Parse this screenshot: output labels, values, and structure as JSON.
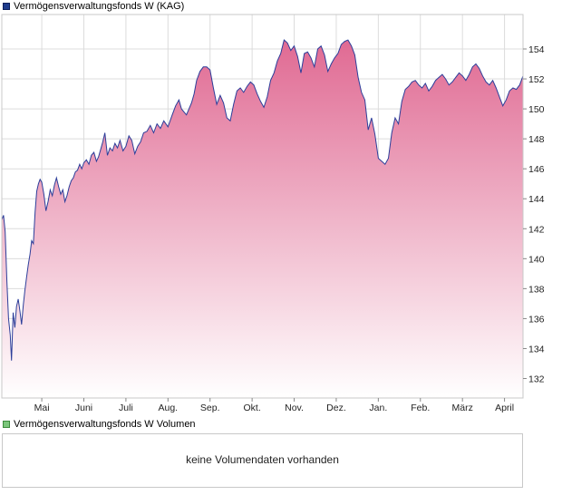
{
  "chart_data": [
    {
      "type": "area",
      "legend": "Vermögensverwaltungsfonds W (KAG)",
      "title": "",
      "xlabel": "",
      "ylabel": "",
      "ylim": [
        130.7,
        156.3
      ],
      "y_ticks": [
        132,
        134,
        136,
        138,
        140,
        142,
        144,
        146,
        148,
        150,
        152,
        154
      ],
      "x_ticks": [
        "Mai",
        "Juni",
        "Juli",
        "Aug.",
        "Sep.",
        "Okt.",
        "Nov.",
        "Dez.",
        "Jan.",
        "Feb.",
        "März",
        "April"
      ],
      "x_tick_months": [
        1,
        2,
        3,
        4,
        5,
        6,
        7,
        8,
        9,
        10,
        11,
        12
      ],
      "x_range_months": [
        0.05,
        12.44
      ],
      "grid": true,
      "legend_position": "top-left",
      "colors": {
        "line": "#2c3e9a",
        "fill_top": "#e06a93",
        "fill_bottom": "#ffffff",
        "grid": "#dcdcdc"
      },
      "series": [
        {
          "x": [
            0.05,
            0.09,
            0.13,
            0.17,
            0.21,
            0.25,
            0.28,
            0.32,
            0.36,
            0.4,
            0.44,
            0.48,
            0.52,
            0.56,
            0.6,
            0.64,
            0.68,
            0.72,
            0.76,
            0.8,
            0.84,
            0.88,
            0.92,
            0.96,
            1.0,
            1.05,
            1.1,
            1.15,
            1.2,
            1.25,
            1.3,
            1.35,
            1.4,
            1.45,
            1.5,
            1.55,
            1.6,
            1.65,
            1.7,
            1.75,
            1.8,
            1.85,
            1.9,
            1.95,
            2.0,
            2.06,
            2.12,
            2.18,
            2.24,
            2.3,
            2.35,
            2.4,
            2.45,
            2.5,
            2.56,
            2.62,
            2.68,
            2.74,
            2.8,
            2.86,
            2.93,
            3.0,
            3.07,
            3.14,
            3.21,
            3.28,
            3.35,
            3.42,
            3.5,
            3.58,
            3.66,
            3.74,
            3.82,
            3.9,
            4.0,
            4.1,
            4.18,
            4.26,
            4.32,
            4.38,
            4.44,
            4.5,
            4.56,
            4.62,
            4.68,
            4.76,
            4.84,
            4.92,
            5.0,
            5.08,
            5.16,
            5.24,
            5.32,
            5.4,
            5.48,
            5.56,
            5.64,
            5.72,
            5.8,
            5.88,
            5.96,
            6.04,
            6.12,
            6.2,
            6.28,
            6.36,
            6.44,
            6.52,
            6.6,
            6.68,
            6.76,
            6.84,
            6.92,
            7.0,
            7.08,
            7.16,
            7.24,
            7.32,
            7.4,
            7.48,
            7.56,
            7.64,
            7.72,
            7.8,
            7.88,
            7.96,
            8.04,
            8.12,
            8.2,
            8.28,
            8.36,
            8.44,
            8.52,
            8.6,
            8.68,
            8.76,
            8.84,
            8.92,
            9.0,
            9.08,
            9.16,
            9.24,
            9.32,
            9.4,
            9.48,
            9.56,
            9.64,
            9.72,
            9.8,
            9.88,
            9.96,
            10.04,
            10.12,
            10.2,
            10.28,
            10.36,
            10.44,
            10.52,
            10.6,
            10.68,
            10.76,
            10.84,
            10.92,
            11.0,
            11.08,
            11.16,
            11.24,
            11.32,
            11.4,
            11.48,
            11.56,
            11.64,
            11.72,
            11.8,
            11.88,
            11.96,
            12.04,
            12.12,
            12.2,
            12.28,
            12.36,
            12.44
          ],
          "values": [
            142.6,
            142.9,
            141.8,
            138.5,
            136.0,
            134.9,
            133.2,
            136.4,
            135.4,
            136.8,
            137.3,
            136.5,
            135.6,
            136.9,
            137.9,
            138.8,
            139.6,
            140.3,
            141.2,
            141.0,
            143.1,
            144.5,
            145.0,
            145.3,
            145.1,
            144.3,
            143.2,
            143.8,
            144.6,
            144.2,
            144.9,
            145.4,
            144.8,
            144.3,
            144.6,
            143.8,
            144.2,
            144.8,
            145.2,
            145.4,
            145.8,
            145.9,
            146.3,
            146.0,
            146.4,
            146.6,
            146.3,
            146.9,
            147.1,
            146.5,
            146.8,
            147.3,
            147.8,
            148.4,
            146.9,
            147.4,
            147.2,
            147.7,
            147.4,
            147.9,
            147.2,
            147.5,
            148.2,
            147.9,
            147.0,
            147.5,
            147.8,
            148.4,
            148.5,
            148.9,
            148.4,
            149.0,
            148.7,
            149.2,
            148.8,
            149.6,
            150.2,
            150.6,
            150.0,
            149.8,
            149.6,
            150.0,
            150.4,
            151.0,
            151.9,
            152.5,
            152.8,
            152.8,
            152.6,
            151.4,
            150.3,
            150.9,
            150.4,
            149.4,
            149.2,
            150.3,
            151.2,
            151.4,
            151.1,
            151.5,
            151.8,
            151.6,
            151.0,
            150.5,
            150.1,
            150.8,
            151.9,
            152.4,
            153.2,
            153.7,
            154.6,
            154.4,
            153.9,
            154.2,
            153.5,
            152.4,
            153.7,
            153.8,
            153.4,
            152.8,
            154.0,
            154.2,
            153.6,
            152.5,
            153.0,
            153.4,
            153.7,
            154.3,
            154.5,
            154.6,
            154.2,
            153.6,
            152.1,
            151.1,
            150.6,
            148.6,
            149.4,
            148.3,
            146.7,
            146.5,
            146.3,
            146.7,
            148.4,
            149.4,
            149.0,
            150.5,
            151.3,
            151.5,
            151.8,
            151.9,
            151.6,
            151.4,
            151.7,
            151.2,
            151.5,
            151.9,
            152.1,
            152.3,
            152.0,
            151.6,
            151.8,
            152.1,
            152.4,
            152.2,
            151.9,
            152.3,
            152.8,
            153.0,
            152.7,
            152.2,
            151.8,
            151.6,
            151.9,
            151.4,
            150.8,
            150.2,
            150.6,
            151.2,
            151.4,
            151.3,
            151.6,
            152.2
          ]
        }
      ]
    },
    {
      "type": "bar",
      "legend": "Vermögensverwaltungsfonds W Volumen",
      "message": "keine Volumendaten vorhanden",
      "series": []
    }
  ]
}
